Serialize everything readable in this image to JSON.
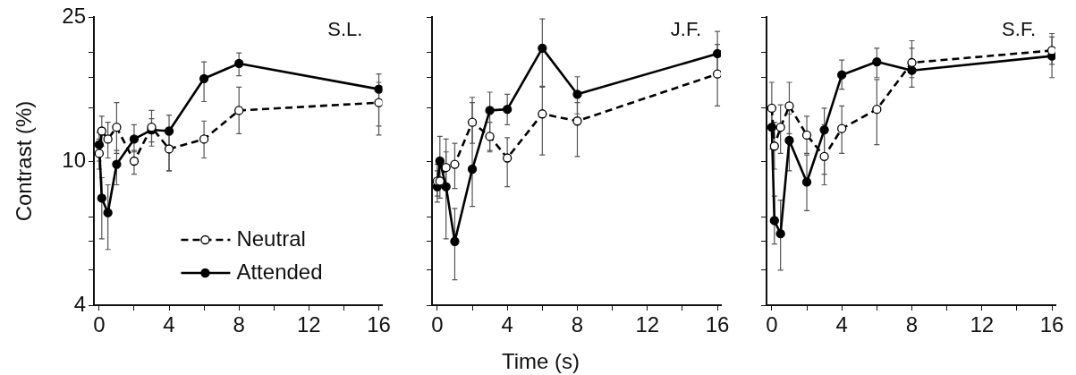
{
  "chart_data": [
    {
      "type": "line",
      "title": "S.L.",
      "ylabel": "Contrast (%)",
      "log": "y",
      "legend": "bottom right",
      "marker": "circle",
      "grid": false,
      "x": [
        0,
        0.15,
        0.5,
        1,
        2,
        3,
        4,
        6,
        8,
        16
      ],
      "xlim": [
        -0.3,
        16.2
      ],
      "xticks": [
        0,
        {
          "value": 2,
          "label": null
        },
        4,
        {
          "value": 6,
          "label": null
        },
        8,
        {
          "value": 10,
          "label": null
        },
        12,
        {
          "value": 14,
          "label": null
        },
        16
      ],
      "ylim": [
        4,
        25
      ],
      "yticks": [
        4,
        {
          "value": 5,
          "label": null
        },
        {
          "value": 6,
          "label": null
        },
        {
          "value": 7,
          "label": null
        },
        10,
        {
          "value": 14,
          "label": null
        },
        {
          "value": 17,
          "label": null
        },
        {
          "value": 20,
          "label": null
        },
        25
      ],
      "series": [
        {
          "name": "Neutral",
          "color": "#000000",
          "line_style": "dashed",
          "values": [
            10.5,
            12.1,
            11.5,
            12.4,
            10.0,
            12.4,
            10.8,
            11.5,
            13.8,
            14.5
          ],
          "errors": [
            [
              9.5,
              11.5
            ],
            [
              11.0,
              13.3
            ],
            [
              10.2,
              12.8
            ],
            [
              10.5,
              14.5
            ],
            [
              9.2,
              10.7
            ],
            [
              11.3,
              13.8
            ],
            [
              9.4,
              12.2
            ],
            [
              10.2,
              12.9
            ],
            [
              11.9,
              16.0
            ],
            [
              12.5,
              16.5
            ]
          ]
        },
        {
          "name": "Attended",
          "color": "#000000",
          "line_style": "solid",
          "values": [
            11.1,
            7.9,
            7.2,
            9.8,
            11.5,
            12.2,
            12.1,
            16.9,
            18.6,
            15.8
          ],
          "errors": [
            [
              10.0,
              12.0
            ],
            [
              6.1,
              9.0
            ],
            [
              5.7,
              8.6
            ],
            [
              8.6,
              10.7
            ],
            [
              10.6,
              12.6
            ],
            [
              11.0,
              13.1
            ],
            [
              9.4,
              13.4
            ],
            [
              14.6,
              18.8
            ],
            [
              17.2,
              19.9
            ],
            [
              11.8,
              17.4
            ]
          ]
        }
      ]
    },
    {
      "type": "line",
      "title": "J.F.",
      "xlabel": "Time (s)",
      "log": "y",
      "legend": false,
      "marker": "circle",
      "grid": false,
      "tick_labels": "x",
      "x": [
        0,
        0.15,
        0.5,
        1,
        2,
        3,
        4,
        6,
        8,
        16
      ],
      "xlim": [
        -0.3,
        16.2
      ],
      "xticks": [
        0,
        {
          "value": 2,
          "label": null
        },
        4,
        {
          "value": 6,
          "label": null
        },
        8,
        {
          "value": 10,
          "label": null
        },
        12,
        {
          "value": 14,
          "label": null
        },
        16
      ],
      "ylim": [
        4,
        25
      ],
      "yticks": [
        4,
        {
          "value": 5,
          "label": null
        },
        {
          "value": 6,
          "label": null
        },
        {
          "value": 7,
          "label": null
        },
        10,
        {
          "value": 14,
          "label": null
        },
        {
          "value": 17,
          "label": null
        },
        {
          "value": 20,
          "label": null
        },
        25
      ],
      "series": [
        {
          "color": "#000000",
          "line_style": "dashed",
          "values": [
            8.8,
            8.8,
            9.6,
            9.8,
            12.8,
            11.7,
            10.2,
            13.5,
            12.9,
            17.4
          ],
          "errors": [
            [
              8.0,
              9.8
            ],
            [
              7.9,
              10.2
            ],
            [
              8.6,
              11.5
            ],
            [
              8.4,
              11.2
            ],
            [
              11.2,
              15.0
            ],
            [
              10.7,
              12.8
            ],
            [
              8.5,
              11.6
            ],
            [
              10.4,
              16.1
            ],
            [
              10.3,
              14.5
            ],
            [
              14.2,
              21.0
            ]
          ]
        },
        {
          "color": "#000000",
          "line_style": "solid",
          "values": [
            8.5,
            10.0,
            8.5,
            6.0,
            9.5,
            13.8,
            13.9,
            20.5,
            15.3,
            19.8
          ],
          "errors": [
            [
              7.7,
              9.4
            ],
            [
              8.8,
              11.7
            ],
            [
              6.1,
              10.6
            ],
            [
              4.7,
              7.4
            ],
            [
              7.5,
              14.5
            ],
            [
              10.6,
              15.5
            ],
            [
              12.6,
              15.3
            ],
            [
              16.0,
              24.7
            ],
            [
              13.5,
              17.1
            ],
            [
              17.2,
              22.8
            ]
          ]
        }
      ]
    },
    {
      "type": "line",
      "title": "S.F.",
      "log": "y",
      "legend": false,
      "marker": "circle",
      "grid": false,
      "tick_labels": "x",
      "x": [
        0,
        0.15,
        0.5,
        1,
        2,
        3,
        4,
        6,
        8,
        16
      ],
      "xlim": [
        -0.3,
        16.2
      ],
      "xticks": [
        0,
        {
          "value": 2,
          "label": null
        },
        4,
        {
          "value": 6,
          "label": null
        },
        8,
        {
          "value": 10,
          "label": null
        },
        12,
        {
          "value": 14,
          "label": null
        },
        16
      ],
      "ylim": [
        4,
        25
      ],
      "yticks": [
        4,
        {
          "value": 5,
          "label": null
        },
        {
          "value": 6,
          "label": null
        },
        {
          "value": 7,
          "label": null
        },
        10,
        {
          "value": 14,
          "label": null
        },
        {
          "value": 17,
          "label": null
        },
        {
          "value": 20,
          "label": null
        },
        25
      ],
      "series": [
        {
          "color": "#000000",
          "line_style": "dashed",
          "values": [
            14.0,
            11.0,
            12.4,
            14.2,
            11.8,
            10.3,
            12.3,
            13.9,
            18.7,
            20.2
          ],
          "errors": [
            [
              12.3,
              16.5
            ],
            [
              9.5,
              12.8
            ],
            [
              10.5,
              14.3
            ],
            [
              11.9,
              16.5
            ],
            [
              10.5,
              13.3
            ],
            [
              8.6,
              12.6
            ],
            [
              10.5,
              14.2
            ],
            [
              11.1,
              16.8
            ],
            [
              17.0,
              21.5
            ],
            [
              18.5,
              22.5
            ]
          ]
        },
        {
          "color": "#000000",
          "line_style": "solid",
          "values": [
            12.4,
            6.85,
            6.3,
            11.4,
            8.75,
            12.2,
            17.3,
            18.8,
            17.8,
            19.5
          ],
          "errors": [
            [
              10.8,
              14.0
            ],
            [
              5.9,
              8.0
            ],
            [
              5.0,
              7.8
            ],
            [
              9.4,
              13.5
            ],
            [
              7.3,
              10.4
            ],
            [
              9.2,
              14.0
            ],
            [
              15.8,
              19.0
            ],
            [
              17.0,
              20.5
            ],
            [
              16.0,
              20.5
            ],
            [
              17.0,
              22.0
            ]
          ]
        }
      ]
    }
  ]
}
